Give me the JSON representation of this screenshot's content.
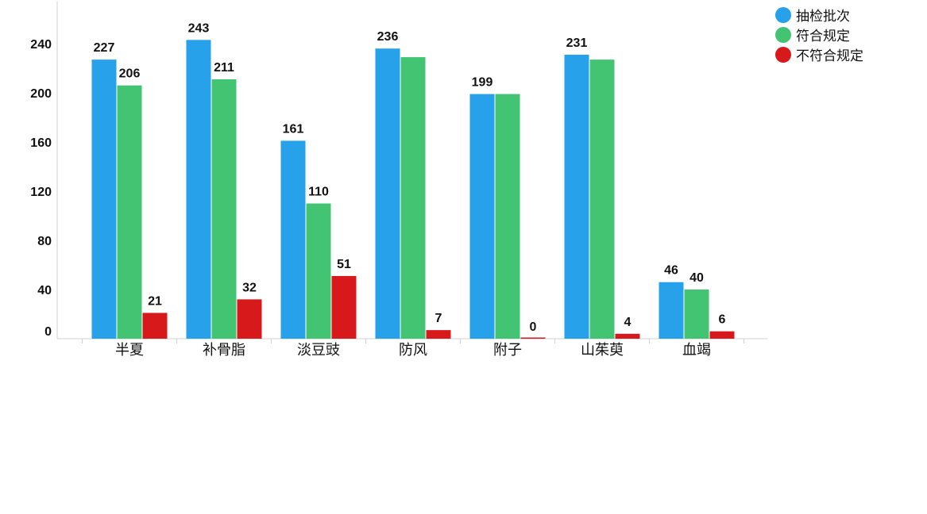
{
  "chart_data": {
    "type": "bar",
    "categories": [
      "半夏",
      "补骨脂",
      "淡豆豉",
      "防风",
      "附子",
      "山茱萸",
      "血竭"
    ],
    "series": [
      {
        "name": "抽检批次",
        "color": "#27a1ea",
        "values": [
          227,
          243,
          161,
          236,
          199,
          231,
          46
        ],
        "labels": [
          "227",
          "243",
          "161",
          "236",
          "199",
          "231",
          "46"
        ]
      },
      {
        "name": "符合规定",
        "color": "#43c472",
        "values": [
          206,
          211,
          110,
          229,
          199,
          227,
          40
        ],
        "labels": [
          "206",
          "211",
          "110",
          "",
          "",
          "",
          "40"
        ]
      },
      {
        "name": "不符合规定",
        "color": "#d7191c",
        "values": [
          21,
          32,
          51,
          7,
          0,
          4,
          6
        ],
        "labels": [
          "21",
          "32",
          "51",
          "7",
          "0",
          "4",
          "6"
        ]
      }
    ],
    "yticks": [
      "0",
      "40",
      "80",
      "120",
      "160",
      "200",
      "240"
    ],
    "ylim": [
      0,
      240
    ],
    "grid": false,
    "legend_position": "top-right",
    "title": "",
    "xlabel": "",
    "ylabel": ""
  }
}
